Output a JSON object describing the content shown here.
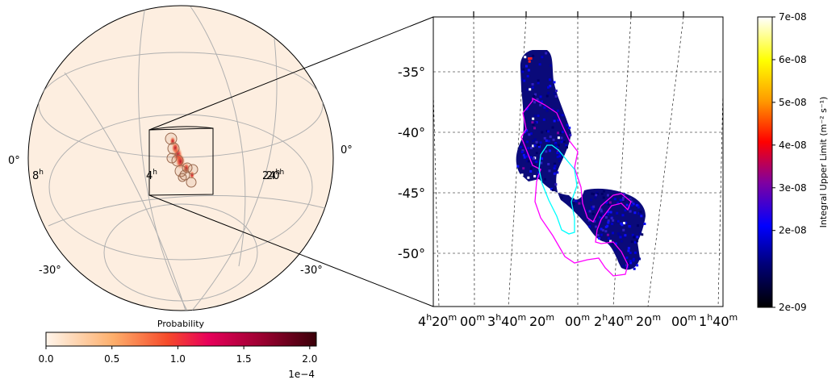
{
  "chart_data": [
    {
      "type": "heatmap",
      "subtype": "all-sky orthographic globe",
      "title": "",
      "meridian_labels": [
        "8",
        "4",
        "24",
        "20"
      ],
      "meridian_label_unit": "h",
      "parallel_labels": [
        "0°",
        "0°",
        "-30°",
        "-30°"
      ],
      "background_color": "#fdeee0",
      "localization_blobs": [
        {
          "ra_h": 3.9,
          "dec": -38,
          "p": 6e-05
        },
        {
          "ra_h": 3.8,
          "dec": -40,
          "p": 0.00012
        },
        {
          "ra_h": 3.7,
          "dec": -42,
          "p": 0.00019
        },
        {
          "ra_h": 3.6,
          "dec": -44,
          "p": 0.0002
        },
        {
          "ra_h": 3.3,
          "dec": -46,
          "p": 0.0001
        },
        {
          "ra_h": 3.0,
          "dec": -48,
          "p": 4e-05
        }
      ],
      "circles_count": 10,
      "colorbar": {
        "label": "Probability",
        "ticks": [
          "0.0",
          "0.5",
          "1.0",
          "1.5",
          "2.0"
        ],
        "range": [
          0,
          2.05
        ],
        "offset_text": "1e−4",
        "colormap": [
          "#fff5eb",
          "#fdae6b",
          "#f03b20",
          "#e7005a",
          "#8b0028",
          "#400010"
        ]
      }
    },
    {
      "type": "heatmap",
      "subtype": "zoomed sky map",
      "title": "",
      "dec_ticks": [
        "-35°",
        "-40°",
        "-45°",
        "-50°"
      ],
      "ra_ticks": [
        {
          "h": "4",
          "m": "20"
        },
        {
          "h": "",
          "m": "00"
        },
        {
          "h": "3",
          "m": "40"
        },
        {
          "h": "",
          "m": "20"
        },
        {
          "h": "",
          "m": "00"
        },
        {
          "h": "2",
          "m": "40"
        },
        {
          "h": "",
          "m": "20"
        },
        {
          "h": "",
          "m": "00"
        },
        {
          "h": "1",
          "m": "40"
        }
      ],
      "contour_colors": {
        "outer": "#ff00ff",
        "inner": "#00ffff"
      },
      "colorbar": {
        "label": "Integral Upper Limit (m⁻² s⁻¹)",
        "ticks": [
          "2e-09",
          "2e-08",
          "3e-08",
          "4e-08",
          "5e-08",
          "6e-08",
          "7e-08"
        ],
        "range": [
          2e-09,
          7e-08
        ],
        "colormap": [
          "#000000",
          "#000080",
          "#0000ff",
          "#800080",
          "#ff0000",
          "#ffa500",
          "#ffff00",
          "#ffffff"
        ]
      }
    }
  ]
}
